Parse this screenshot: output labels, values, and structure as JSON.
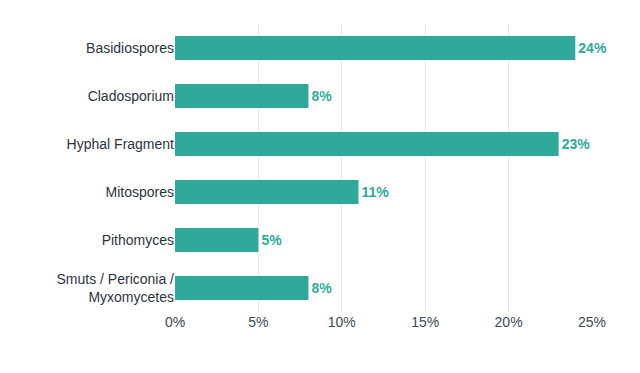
{
  "chart_data": {
    "type": "bar",
    "orientation": "horizontal",
    "categories": [
      "Basidiospores",
      "Cladosporium",
      "Hyphal Fragment",
      "Mitospores",
      "Pithomyces",
      "Smuts / Periconia / Myxomycetes"
    ],
    "values": [
      24,
      8,
      23,
      11,
      5,
      8
    ],
    "value_labels": [
      "24%",
      "8%",
      "23%",
      "11%",
      "5%",
      "8%"
    ],
    "color": "#2fa99b",
    "xlim": [
      0,
      25
    ],
    "xticks": [
      {
        "value": 0,
        "label": "0%"
      },
      {
        "value": 5,
        "label": "5%"
      },
      {
        "value": 10,
        "label": "10%"
      },
      {
        "value": 15,
        "label": "15%"
      },
      {
        "value": 20,
        "label": "20%"
      },
      {
        "value": 25,
        "label": "25%"
      }
    ],
    "grid": true,
    "data_labels": true
  }
}
